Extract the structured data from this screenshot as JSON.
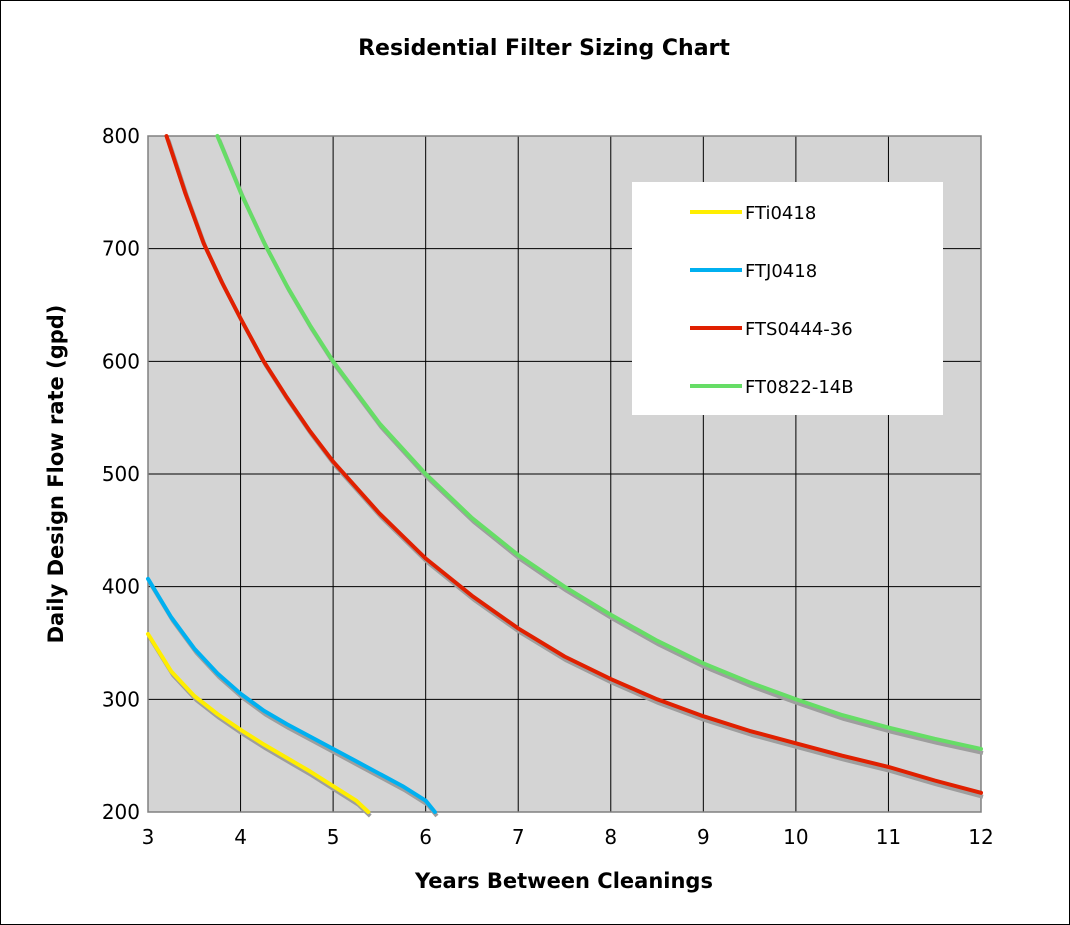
{
  "chart_data": {
    "type": "line",
    "title": "Residential Filter Sizing Chart",
    "xlabel": "Years Between Cleanings",
    "ylabel": "Daily Design Flow rate  (gpd)",
    "xlim": [
      3,
      12
    ],
    "ylim": [
      200,
      800
    ],
    "x_ticks": [
      3,
      4,
      5,
      6,
      7,
      8,
      9,
      10,
      11,
      12
    ],
    "y_ticks": [
      200,
      300,
      400,
      500,
      600,
      700,
      800
    ],
    "grid": true,
    "legend_position": "top-right",
    "series": [
      {
        "name": "FTi0418",
        "color": "#FFEE00",
        "x": [
          3,
          3.25,
          3.5,
          3.75,
          4,
          4.25,
          4.5,
          4.75,
          5,
          5.25,
          5.38
        ],
        "y": [
          358,
          325,
          303,
          287,
          273,
          260,
          248,
          236,
          223,
          210,
          200
        ]
      },
      {
        "name": "FTJ0418",
        "color": "#00B0F0",
        "x": [
          3,
          3.25,
          3.5,
          3.75,
          4,
          4.25,
          4.5,
          4.75,
          5,
          5.25,
          5.5,
          5.75,
          6,
          6.1
        ],
        "y": [
          407,
          373,
          345,
          323,
          305,
          290,
          278,
          267,
          256,
          245,
          234,
          223,
          210,
          200
        ]
      },
      {
        "name": "FTS0444-36",
        "color": "#E02000",
        "x": [
          3.2,
          3.4,
          3.6,
          3.8,
          4,
          4.25,
          4.5,
          4.75,
          5,
          5.5,
          6,
          6.5,
          7,
          7.5,
          8,
          8.5,
          9,
          9.5,
          10,
          10.5,
          11,
          11.5,
          12
        ],
        "y": [
          800,
          750,
          705,
          670,
          638,
          600,
          568,
          538,
          511,
          465,
          425,
          392,
          363,
          338,
          318,
          300,
          285,
          272,
          261,
          250,
          240,
          228,
          217
        ]
      },
      {
        "name": "FT0822-14B",
        "color": "#66DD66",
        "x": [
          3.75,
          4,
          4.25,
          4.5,
          4.75,
          5,
          5.5,
          6,
          6.5,
          7,
          7.5,
          8,
          8.5,
          9,
          9.5,
          10,
          10.5,
          11,
          11.5,
          12
        ],
        "y": [
          800,
          750,
          706,
          667,
          632,
          600,
          545,
          500,
          461,
          428,
          400,
          375,
          352,
          332,
          315,
          300,
          286,
          275,
          265,
          256
        ]
      }
    ]
  }
}
